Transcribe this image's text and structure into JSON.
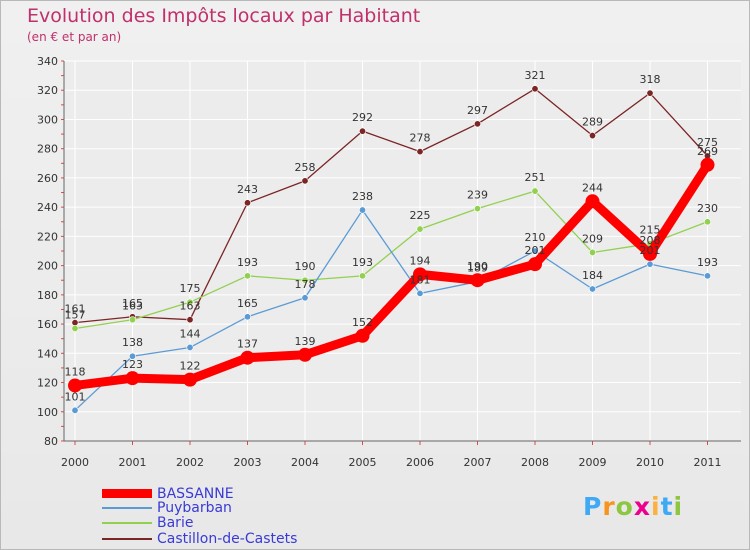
{
  "chart_data": {
    "type": "line",
    "title": "Evolution des Impôts locaux par Habitant",
    "subtitle": "(en € et par an)",
    "x": [
      "2000",
      "2001",
      "2002",
      "2003",
      "2004",
      "2005",
      "2006",
      "2007",
      "2008",
      "2009",
      "2010",
      "2011"
    ],
    "ylim": [
      80,
      340
    ],
    "yticks": [
      80,
      100,
      120,
      140,
      160,
      180,
      200,
      220,
      240,
      260,
      280,
      300,
      320,
      340
    ],
    "grid": true,
    "legend_position": "bottom-left",
    "series": [
      {
        "name": "BASSANNE",
        "color": "#ff0000",
        "values": [
          118,
          123,
          122,
          137,
          139,
          152,
          194,
          190,
          201,
          244,
          208,
          269
        ]
      },
      {
        "name": "Puybarban",
        "color": "#5b9bd5",
        "values": [
          101,
          138,
          144,
          165,
          178,
          238,
          181,
          189,
          210,
          184,
          201,
          193
        ]
      },
      {
        "name": "Barie",
        "color": "#92d050",
        "values": [
          157,
          163,
          175,
          193,
          190,
          193,
          225,
          239,
          251,
          209,
          215,
          230
        ]
      },
      {
        "name": "Castillon-de-Castets",
        "color": "#7b2525",
        "values": [
          161,
          165,
          163,
          243,
          258,
          292,
          278,
          297,
          321,
          289,
          318,
          275
        ]
      }
    ]
  },
  "logo": {
    "letters": [
      "P",
      "r",
      "o",
      "x",
      "i",
      "t",
      "i"
    ],
    "colors": [
      "#3fa9f5",
      "#f7941d",
      "#8dc63f",
      "#ec008c",
      "#fbb040",
      "#3fa9f5",
      "#8dc63f"
    ]
  }
}
